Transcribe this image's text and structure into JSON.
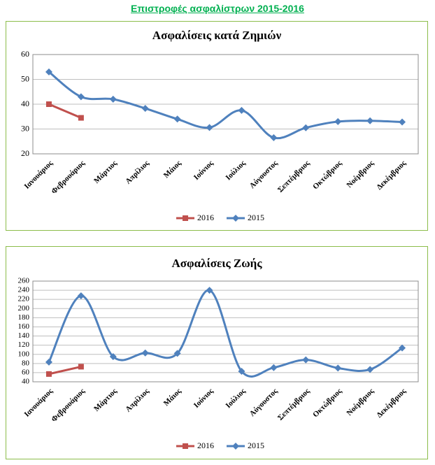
{
  "title": "Επιστροφές ασφαλίστρων 2015-2016",
  "chart_data": [
    {
      "type": "line",
      "title": "Ασφαλίσεις κατά Ζημιών",
      "categories": [
        "Ιανουάριος",
        "Φεβρουάριος",
        "Μάρτιος",
        "Απρίλιος",
        "Μάιος",
        "Ιούνιος",
        "Ιούλιος",
        "Αύγουστος",
        "Σεπτέμβριος",
        "Οκτώβριος",
        "Νοέμβριος",
        "Δεκέμβριος"
      ],
      "series": [
        {
          "name": "2016",
          "color": "#c0504d",
          "marker": "square",
          "values": [
            40,
            34.5,
            null,
            null,
            null,
            null,
            null,
            null,
            null,
            null,
            null,
            null
          ]
        },
        {
          "name": "2015",
          "color": "#4f81bd",
          "marker": "diamond",
          "values": [
            53,
            43,
            42,
            38.3,
            34,
            30.6,
            37.5,
            26.5,
            30.5,
            33,
            33.3,
            32.8
          ]
        }
      ],
      "ylim": [
        20,
        60
      ],
      "yticks": [
        20,
        30,
        40,
        50,
        60
      ],
      "grid": true,
      "smooth": true,
      "legend": "bottom"
    },
    {
      "type": "line",
      "title": "Ασφαλίσεις Ζωής",
      "categories": [
        "Ιανουάριος",
        "Φεβρουάριος",
        "Μάρτιος",
        "Απρίλιος",
        "Μάιος",
        "Ιούνιος",
        "Ιούλιος",
        "Αύγουστος",
        "Σεπτέμβριος",
        "Οκτώβριος",
        "Νοέμβριος",
        "Δεκέμβριος"
      ],
      "series": [
        {
          "name": "2016",
          "color": "#c0504d",
          "marker": "square",
          "values": [
            57,
            73,
            null,
            null,
            null,
            null,
            null,
            null,
            null,
            null,
            null,
            null
          ]
        },
        {
          "name": "2015",
          "color": "#4f81bd",
          "marker": "diamond",
          "values": [
            83,
            228,
            95,
            103,
            102,
            240,
            63,
            71,
            88,
            70,
            67,
            114
          ]
        }
      ],
      "ylim": [
        40,
        260
      ],
      "yticks": [
        40,
        60,
        80,
        100,
        120,
        140,
        160,
        180,
        200,
        220,
        240,
        260
      ],
      "grid": true,
      "smooth": true,
      "legend": "bottom"
    }
  ]
}
